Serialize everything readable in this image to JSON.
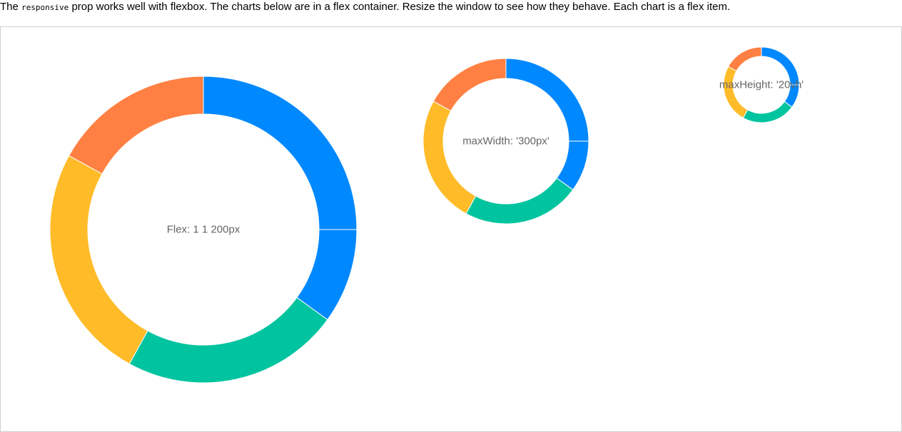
{
  "intro": {
    "prefix": "The",
    "code": "responsive",
    "suffix": "prop works well with flexbox. The charts below are in a flex container. Resize the window to see how they behave. Each chart is a flex item."
  },
  "colors": {
    "blue": "#0088FE",
    "orange": "#FF8042",
    "yellow": "#FFBB28",
    "green": "#00C49F",
    "center_label": "#666666",
    "container_border": "#cfcfcf"
  },
  "chart_data": [
    {
      "type": "pie",
      "variant": "donut",
      "center_label": "Flex: 1 1 200px",
      "slices": [
        {
          "value": 25,
          "color": "#0088FE"
        },
        {
          "value": 17,
          "color": "#FF8042"
        },
        {
          "value": 25,
          "color": "#FFBB28"
        },
        {
          "value": 23,
          "color": "#00C49F"
        },
        {
          "value": 10,
          "color": "#0088FE"
        }
      ]
    },
    {
      "type": "pie",
      "variant": "donut",
      "center_label": "maxWidth: '300px'",
      "slices": [
        {
          "value": 25,
          "color": "#0088FE"
        },
        {
          "value": 17,
          "color": "#FF8042"
        },
        {
          "value": 25,
          "color": "#FFBB28"
        },
        {
          "value": 23,
          "color": "#00C49F"
        },
        {
          "value": 10,
          "color": "#0088FE"
        }
      ]
    },
    {
      "type": "pie",
      "variant": "donut",
      "center_label": "maxHeight: '20vh'",
      "slices": [
        {
          "value": 25,
          "color": "#0088FE"
        },
        {
          "value": 17,
          "color": "#FF8042"
        },
        {
          "value": 25,
          "color": "#FFBB28"
        },
        {
          "value": 23,
          "color": "#00C49F"
        },
        {
          "value": 10,
          "color": "#0088FE"
        }
      ]
    }
  ]
}
